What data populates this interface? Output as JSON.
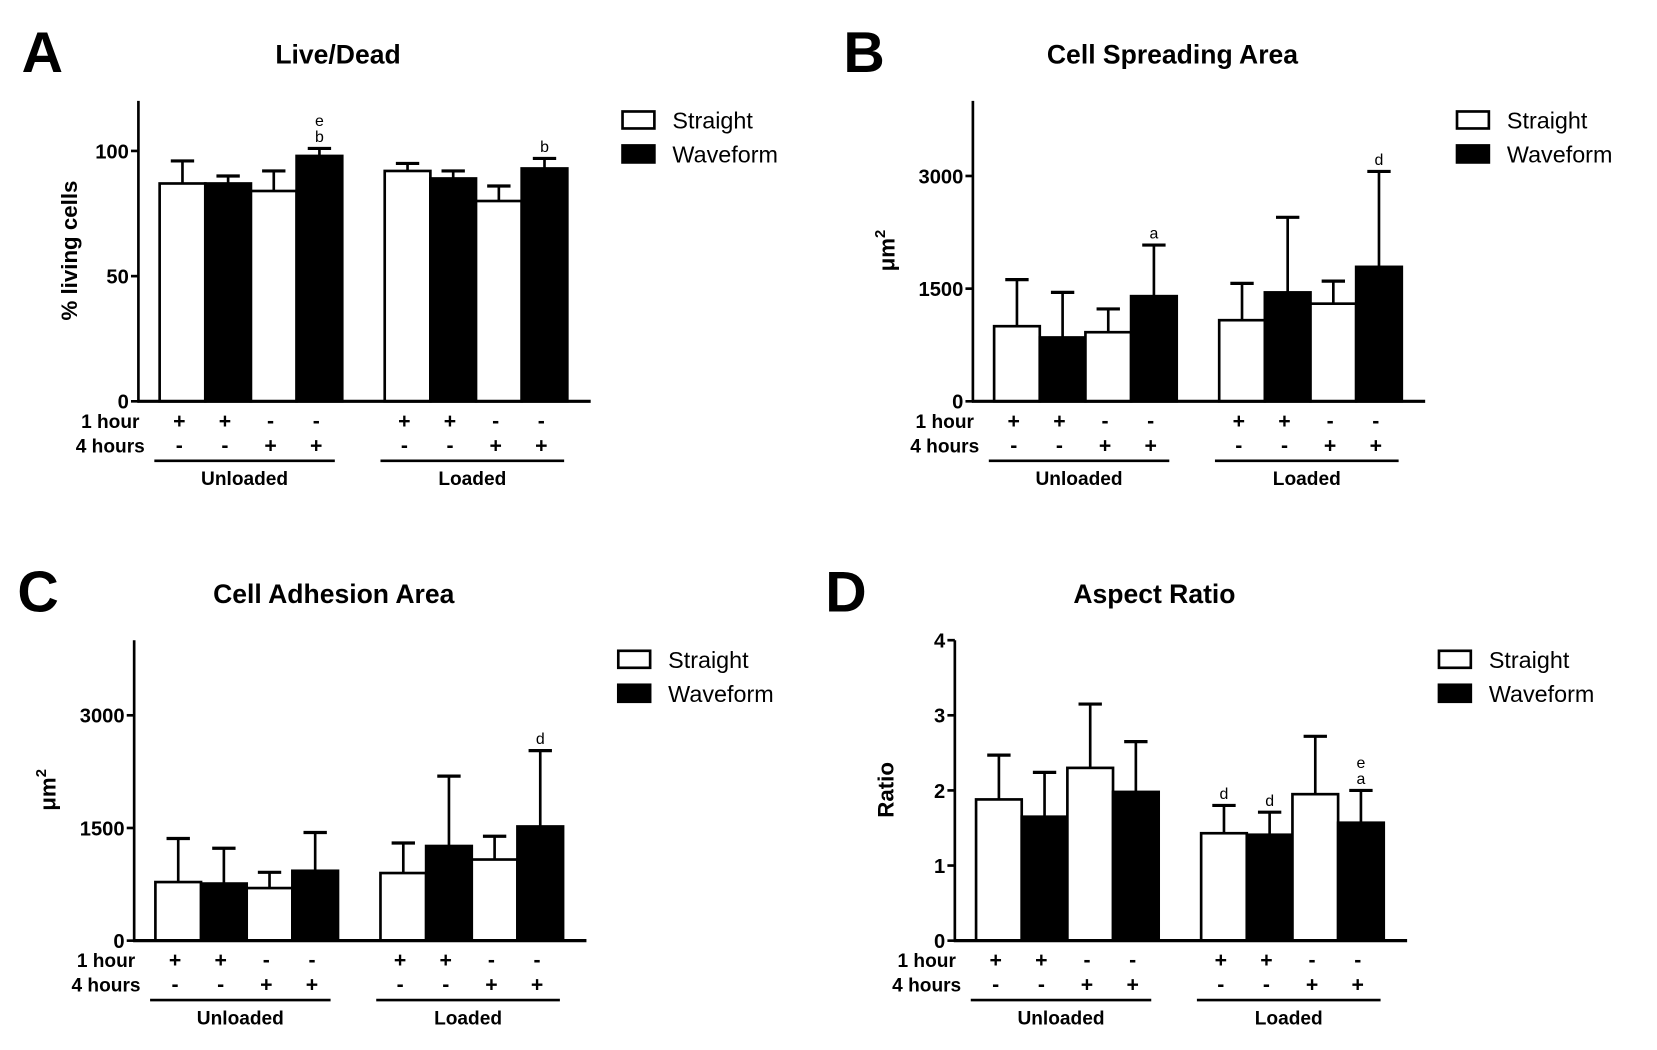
{
  "chart_data": [
    {
      "type": "bar",
      "panel_letter": "A",
      "title": "Live/Dead",
      "ylabel": "% living cells",
      "ylabel_sup": "",
      "ylim": [
        0,
        120
      ],
      "yticks": [
        0,
        50,
        100
      ],
      "row_labels": [
        "1 hour",
        "4 hours"
      ],
      "row1_signs": [
        "+",
        "+",
        "-",
        "-",
        "+",
        "+",
        "-",
        "-"
      ],
      "row2_signs": [
        "-",
        "-",
        "+",
        "+",
        "-",
        "-",
        "+",
        "+"
      ],
      "groups": [
        "Unloaded",
        "Loaded"
      ],
      "legend": [
        "Straight",
        "Waveform"
      ],
      "bars": [
        {
          "series": "Straight",
          "value": 87,
          "error_top": 96,
          "annot": []
        },
        {
          "series": "Waveform",
          "value": 87,
          "error_top": 90,
          "annot": []
        },
        {
          "series": "Straight",
          "value": 84,
          "error_top": 92,
          "annot": []
        },
        {
          "series": "Waveform",
          "value": 98,
          "error_top": 101,
          "annot": [
            "b",
            "e"
          ]
        },
        {
          "series": "Straight",
          "value": 92,
          "error_top": 95,
          "annot": []
        },
        {
          "series": "Waveform",
          "value": 89,
          "error_top": 92,
          "annot": []
        },
        {
          "series": "Straight",
          "value": 80,
          "error_top": 86,
          "annot": []
        },
        {
          "series": "Waveform",
          "value": 93,
          "error_top": 97,
          "annot": [
            "b"
          ]
        }
      ]
    },
    {
      "type": "bar",
      "panel_letter": "B",
      "title": "Cell Spreading Area",
      "ylabel": "μm",
      "ylabel_sup": "2",
      "ylim": [
        0,
        4000
      ],
      "yticks": [
        0,
        1500,
        3000
      ],
      "row_labels": [
        "1 hour",
        "4 hours"
      ],
      "row1_signs": [
        "+",
        "+",
        "-",
        "-",
        "+",
        "+",
        "-",
        "-"
      ],
      "row2_signs": [
        "-",
        "-",
        "+",
        "+",
        "-",
        "-",
        "+",
        "+"
      ],
      "groups": [
        "Unloaded",
        "Loaded"
      ],
      "legend": [
        "Straight",
        "Waveform"
      ],
      "bars": [
        {
          "series": "Straight",
          "value": 1000,
          "error_top": 1620,
          "annot": []
        },
        {
          "series": "Waveform",
          "value": 850,
          "error_top": 1450,
          "annot": []
        },
        {
          "series": "Straight",
          "value": 920,
          "error_top": 1230,
          "annot": []
        },
        {
          "series": "Waveform",
          "value": 1400,
          "error_top": 2080,
          "annot": [
            "a"
          ]
        },
        {
          "series": "Straight",
          "value": 1080,
          "error_top": 1570,
          "annot": []
        },
        {
          "series": "Waveform",
          "value": 1450,
          "error_top": 2450,
          "annot": []
        },
        {
          "series": "Straight",
          "value": 1300,
          "error_top": 1600,
          "annot": []
        },
        {
          "series": "Waveform",
          "value": 1790,
          "error_top": 3060,
          "annot": [
            "d"
          ]
        }
      ]
    },
    {
      "type": "bar",
      "panel_letter": "C",
      "title": "Cell Adhesion Area",
      "ylabel": "μm",
      "ylabel_sup": "2",
      "ylim": [
        0,
        4000
      ],
      "yticks": [
        0,
        1500,
        3000
      ],
      "row_labels": [
        "1 hour",
        "4 hours"
      ],
      "row1_signs": [
        "+",
        "+",
        "-",
        "-",
        "+",
        "+",
        "-",
        "-"
      ],
      "row2_signs": [
        "-",
        "-",
        "+",
        "+",
        "-",
        "-",
        "+",
        "+"
      ],
      "groups": [
        "Unloaded",
        "Loaded"
      ],
      "legend": [
        "Straight",
        "Waveform"
      ],
      "bars": [
        {
          "series": "Straight",
          "value": 780,
          "error_top": 1360,
          "annot": []
        },
        {
          "series": "Waveform",
          "value": 760,
          "error_top": 1230,
          "annot": []
        },
        {
          "series": "Straight",
          "value": 700,
          "error_top": 910,
          "annot": []
        },
        {
          "series": "Waveform",
          "value": 930,
          "error_top": 1440,
          "annot": []
        },
        {
          "series": "Straight",
          "value": 900,
          "error_top": 1300,
          "annot": []
        },
        {
          "series": "Waveform",
          "value": 1260,
          "error_top": 2190,
          "annot": []
        },
        {
          "series": "Straight",
          "value": 1080,
          "error_top": 1390,
          "annot": []
        },
        {
          "series": "Waveform",
          "value": 1520,
          "error_top": 2530,
          "annot": [
            "d"
          ]
        }
      ]
    },
    {
      "type": "bar",
      "panel_letter": "D",
      "title": "Aspect Ratio",
      "ylabel": "Ratio",
      "ylabel_sup": "",
      "ylim": [
        0,
        4
      ],
      "yticks": [
        0,
        1,
        2,
        3,
        4
      ],
      "row_labels": [
        "1 hour",
        "4 hours"
      ],
      "row1_signs": [
        "+",
        "+",
        "-",
        "-",
        "+",
        "+",
        "-",
        "-"
      ],
      "row2_signs": [
        "-",
        "-",
        "+",
        "+",
        "-",
        "-",
        "+",
        "+"
      ],
      "groups": [
        "Unloaded",
        "Loaded"
      ],
      "legend": [
        "Straight",
        "Waveform"
      ],
      "bars": [
        {
          "series": "Straight",
          "value": 1.88,
          "error_top": 2.47,
          "annot": []
        },
        {
          "series": "Waveform",
          "value": 1.65,
          "error_top": 2.24,
          "annot": []
        },
        {
          "series": "Straight",
          "value": 2.3,
          "error_top": 3.15,
          "annot": []
        },
        {
          "series": "Waveform",
          "value": 1.98,
          "error_top": 2.65,
          "annot": []
        },
        {
          "series": "Straight",
          "value": 1.43,
          "error_top": 1.8,
          "annot": [
            "d"
          ]
        },
        {
          "series": "Waveform",
          "value": 1.41,
          "error_top": 1.71,
          "annot": [
            "d"
          ]
        },
        {
          "series": "Straight",
          "value": 1.95,
          "error_top": 2.72,
          "annot": []
        },
        {
          "series": "Waveform",
          "value": 1.57,
          "error_top": 2.0,
          "annot": [
            "a",
            "e"
          ]
        }
      ]
    }
  ],
  "colors": {
    "straight_fill": "#ffffff",
    "waveform_fill": "#000000",
    "ink": "#000000"
  }
}
